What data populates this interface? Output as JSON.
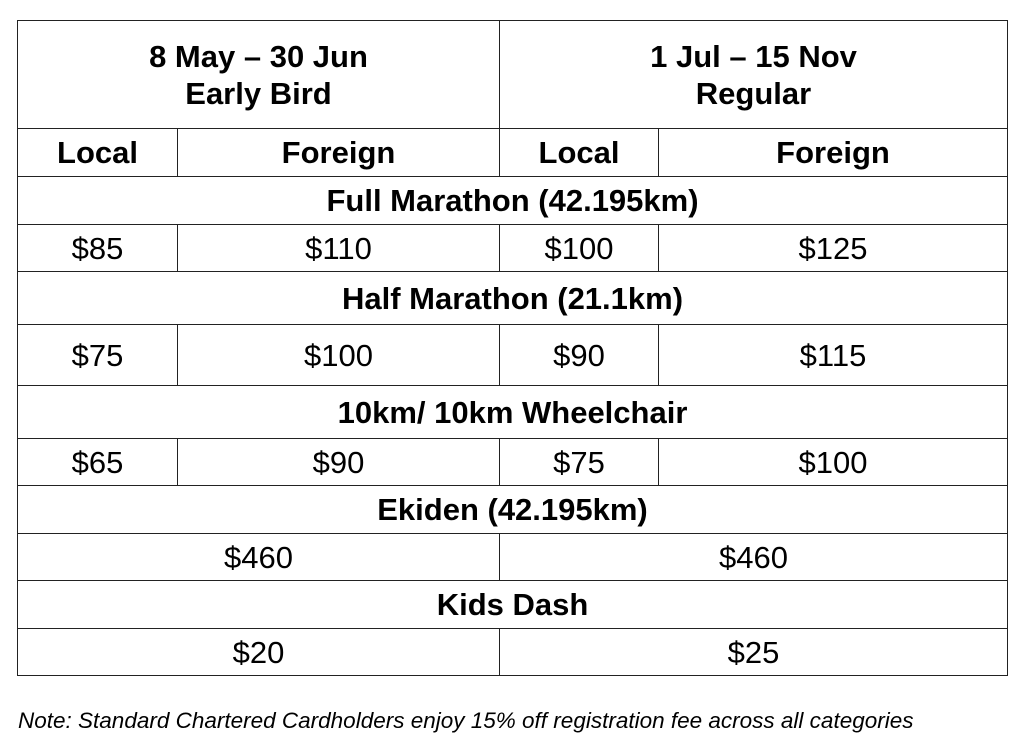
{
  "periods": [
    {
      "dates": "8 May – 30 Jun",
      "label": "Early Bird"
    },
    {
      "dates": "1 Jul – 15 Nov",
      "label": "Regular"
    }
  ],
  "columns": [
    "Local",
    "Foreign",
    "Local",
    "Foreign"
  ],
  "categories": [
    {
      "name": "Full Marathon (42.195km)",
      "prices": [
        "$85",
        "$110",
        "$100",
        "$125"
      ]
    },
    {
      "name": "Half Marathon (21.1km)",
      "prices": [
        "$75",
        "$100",
        "$90",
        "$115"
      ]
    },
    {
      "name": "10km/ 10km Wheelchair",
      "prices": [
        "$65",
        "$90",
        "$75",
        "$100"
      ]
    },
    {
      "name": "Ekiden (42.195km)",
      "prices": [
        "$460",
        "$460"
      ]
    },
    {
      "name": "Kids Dash",
      "prices": [
        "$20",
        "$25"
      ]
    }
  ],
  "note": "Note: Standard Chartered Cardholders enjoy 15% off registration fee across all categories"
}
